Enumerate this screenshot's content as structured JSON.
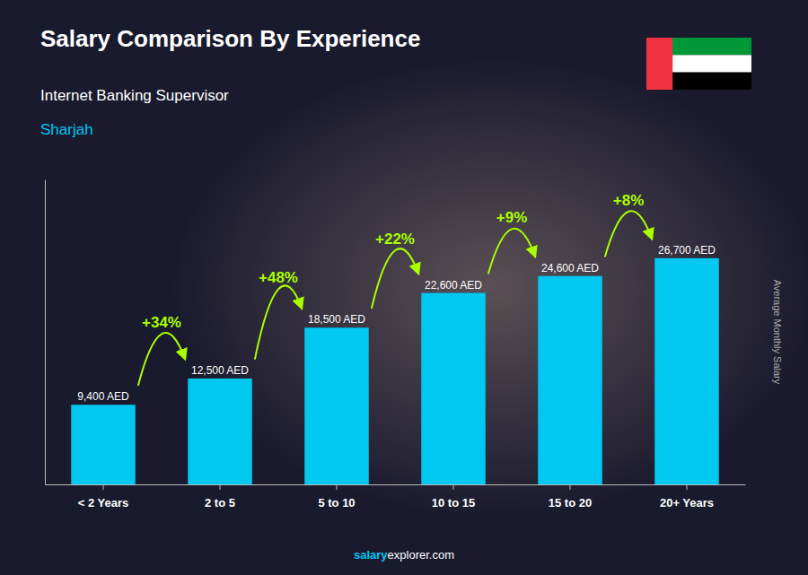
{
  "chart_data": {
    "type": "bar",
    "title": "Salary Comparison By Experience",
    "subtitle": "Internet Banking Supervisor",
    "location": "Sharjah",
    "categories": [
      "< 2 Years",
      "2 to 5",
      "5 to 10",
      "10 to 15",
      "15 to 20",
      "20+ Years"
    ],
    "values": [
      9400,
      12500,
      18500,
      22600,
      24600,
      26700
    ],
    "value_labels": [
      "9,400 AED",
      "12,500 AED",
      "18,500 AED",
      "22,600 AED",
      "24,600 AED",
      "26,700 AED"
    ],
    "data_labels": true,
    "annotations": [
      "+34%",
      "+48%",
      "+22%",
      "+9%",
      "+8%"
    ],
    "ylabel": "Average Monthly Salary",
    "footer": [
      "salary",
      "explorer.com"
    ],
    "color": "#00C8F0",
    "ylim": [
      0,
      36000
    ],
    "tick_labels": "x",
    "grid": false
  }
}
